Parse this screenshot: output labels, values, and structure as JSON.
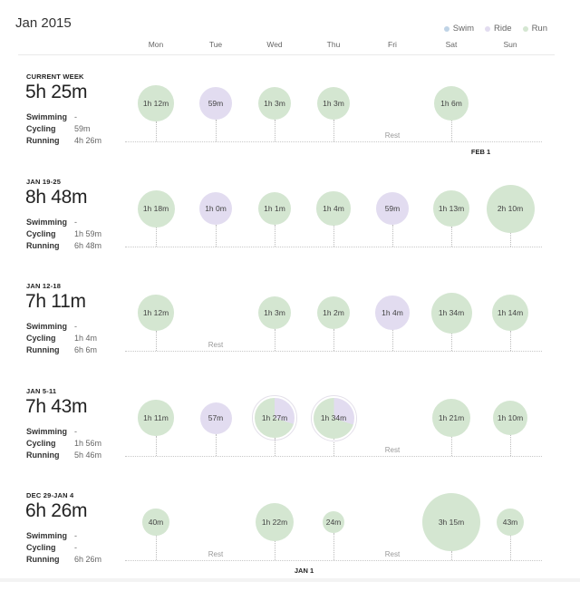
{
  "title": "Jan 2015",
  "legend": [
    {
      "label": "Swim",
      "color": "#bfd3e6"
    },
    {
      "label": "Ride",
      "color": "#e2dcf0"
    },
    {
      "label": "Run",
      "color": "#d4e6d1"
    }
  ],
  "days": [
    "Mon",
    "Tue",
    "Wed",
    "Thu",
    "Fri",
    "Sat",
    "Sun"
  ],
  "weeks": [
    {
      "label": "CURRENT WEEK",
      "total": "5h 25m",
      "sports": [
        {
          "name": "Swimming",
          "value": "-"
        },
        {
          "name": "Cycling",
          "value": "59m"
        },
        {
          "name": "Running",
          "value": "4h 26m"
        }
      ],
      "sessions": [
        {
          "day": 0,
          "text": "1h 12m",
          "kind": "run",
          "minutes": 72
        },
        {
          "day": 1,
          "text": "59m",
          "kind": "ride",
          "minutes": 59
        },
        {
          "day": 2,
          "text": "1h 3m",
          "kind": "run",
          "minutes": 63
        },
        {
          "day": 3,
          "text": "1h 3m",
          "kind": "run",
          "minutes": 63
        },
        {
          "day": 5,
          "text": "1h 6m",
          "kind": "run",
          "minutes": 66
        }
      ],
      "rests": [
        {
          "day": 4,
          "text": "Rest"
        }
      ],
      "marker": {
        "day": 5.5,
        "text": "FEB 1"
      }
    },
    {
      "label": "JAN 19-25",
      "total": "8h 48m",
      "sports": [
        {
          "name": "Swimming",
          "value": "-"
        },
        {
          "name": "Cycling",
          "value": "1h 59m"
        },
        {
          "name": "Running",
          "value": "6h 48m"
        }
      ],
      "sessions": [
        {
          "day": 0,
          "text": "1h 18m",
          "kind": "run",
          "minutes": 78
        },
        {
          "day": 1,
          "text": "1h 0m",
          "kind": "ride",
          "minutes": 60
        },
        {
          "day": 2,
          "text": "1h 1m",
          "kind": "run",
          "minutes": 61
        },
        {
          "day": 3,
          "text": "1h 4m",
          "kind": "run",
          "minutes": 64
        },
        {
          "day": 4,
          "text": "59m",
          "kind": "ride",
          "minutes": 59
        },
        {
          "day": 5,
          "text": "1h 13m",
          "kind": "run",
          "minutes": 73
        },
        {
          "day": 6,
          "text": "2h 10m",
          "kind": "run",
          "minutes": 130
        }
      ],
      "rests": []
    },
    {
      "label": "JAN 12-18",
      "total": "7h 11m",
      "sports": [
        {
          "name": "Swimming",
          "value": "-"
        },
        {
          "name": "Cycling",
          "value": "1h 4m"
        },
        {
          "name": "Running",
          "value": "6h 6m"
        }
      ],
      "sessions": [
        {
          "day": 0,
          "text": "1h 12m",
          "kind": "run",
          "minutes": 72
        },
        {
          "day": 2,
          "text": "1h 3m",
          "kind": "run",
          "minutes": 63
        },
        {
          "day": 3,
          "text": "1h 2m",
          "kind": "run",
          "minutes": 62
        },
        {
          "day": 4,
          "text": "1h 4m",
          "kind": "ride",
          "minutes": 64
        },
        {
          "day": 5,
          "text": "1h 34m",
          "kind": "run",
          "minutes": 94
        },
        {
          "day": 6,
          "text": "1h 14m",
          "kind": "run",
          "minutes": 74
        }
      ],
      "rests": [
        {
          "day": 1,
          "text": "Rest"
        }
      ]
    },
    {
      "label": "JAN 5-11",
      "total": "7h 43m",
      "sports": [
        {
          "name": "Swimming",
          "value": "-"
        },
        {
          "name": "Cycling",
          "value": "1h 56m"
        },
        {
          "name": "Running",
          "value": "5h 46m"
        }
      ],
      "sessions": [
        {
          "day": 0,
          "text": "1h 11m",
          "kind": "run",
          "minutes": 71
        },
        {
          "day": 1,
          "text": "57m",
          "kind": "ride",
          "minutes": 57
        },
        {
          "day": 2,
          "text": "1h 27m",
          "kind": "mix",
          "minutes": 87
        },
        {
          "day": 3,
          "text": "1h 34m",
          "kind": "mix",
          "minutes": 94
        },
        {
          "day": 5,
          "text": "1h 21m",
          "kind": "run",
          "minutes": 81
        },
        {
          "day": 6,
          "text": "1h 10m",
          "kind": "run",
          "minutes": 70
        }
      ],
      "rests": [
        {
          "day": 4,
          "text": "Rest"
        }
      ]
    },
    {
      "label": "DEC 29-JAN 4",
      "total": "6h 26m",
      "sports": [
        {
          "name": "Swimming",
          "value": "-"
        },
        {
          "name": "Cycling",
          "value": "-"
        },
        {
          "name": "Running",
          "value": "6h 26m"
        }
      ],
      "sessions": [
        {
          "day": 0,
          "text": "40m",
          "kind": "run",
          "minutes": 40
        },
        {
          "day": 2,
          "text": "1h 22m",
          "kind": "run",
          "minutes": 82
        },
        {
          "day": 3,
          "text": "24m",
          "kind": "run",
          "minutes": 24
        },
        {
          "day": 5,
          "text": "3h 15m",
          "kind": "run",
          "minutes": 195
        },
        {
          "day": 6,
          "text": "43m",
          "kind": "run",
          "minutes": 43
        }
      ],
      "rests": [
        {
          "day": 1,
          "text": "Rest"
        },
        {
          "day": 4,
          "text": "Rest"
        }
      ],
      "marker": {
        "day": 2.5,
        "text": "JAN 1"
      }
    }
  ]
}
